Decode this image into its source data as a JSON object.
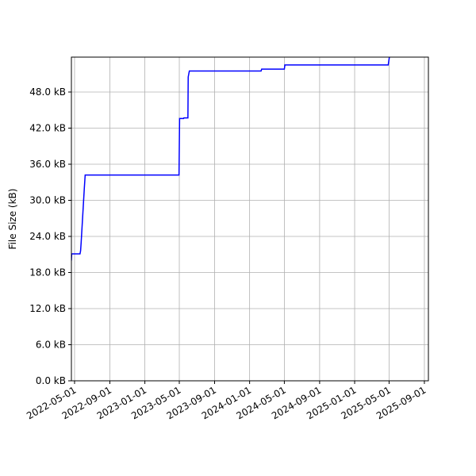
{
  "chart_data": {
    "type": "line",
    "title": "",
    "xlabel": "",
    "ylabel": "File Size (kB)",
    "grid": true,
    "legend": "none",
    "line_color": "#0000ff",
    "xlim": [
      "2022-04-20",
      "2025-09-15"
    ],
    "ylim": [
      0,
      53.8
    ],
    "x_ticks": [
      "2022-05-01",
      "2022-09-01",
      "2023-01-01",
      "2023-05-01",
      "2023-09-01",
      "2024-01-01",
      "2024-05-01",
      "2024-09-01",
      "2025-01-01",
      "2025-05-01",
      "2025-09-01"
    ],
    "y_ticks": [
      0,
      6,
      12,
      18,
      24,
      30,
      36,
      42,
      48
    ],
    "y_tick_labels": [
      "0.0 kB",
      "6.0 kB",
      "12.0 kB",
      "18.0 kB",
      "24.0 kB",
      "30.0 kB",
      "36.0 kB",
      "42.0 kB",
      "48.0 kB"
    ],
    "series": [
      {
        "x": [
          "2022-04-20",
          "2022-04-21",
          "2022-04-22",
          "2022-05-20",
          "2022-05-22",
          "2022-05-24",
          "2022-06-04",
          "2022-06-07",
          "2023-04-30",
          "2023-05-02",
          "2023-05-16",
          "2023-05-17",
          "2023-05-31",
          "2023-06-01",
          "2023-06-05",
          "2023-06-06",
          "2024-02-10",
          "2024-02-12",
          "2024-05-01",
          "2024-05-03",
          "2025-04-28",
          "2025-05-02"
        ],
        "y": [
          20.0,
          21.1,
          21.1,
          21.1,
          21.6,
          23.0,
          32.0,
          34.2,
          34.2,
          43.6,
          43.6,
          43.7,
          43.7,
          50.5,
          51.5,
          51.5,
          51.5,
          51.8,
          51.8,
          52.5,
          52.5,
          53.8
        ]
      }
    ]
  }
}
